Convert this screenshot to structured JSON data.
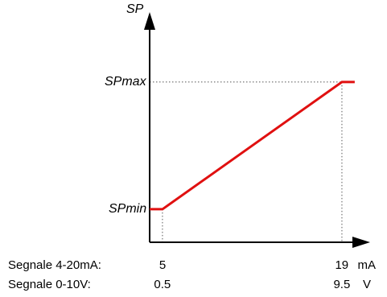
{
  "chart_data": {
    "type": "line",
    "title": "",
    "ylabel": "SP",
    "y_ticks": [
      {
        "label": "SPmin",
        "value": 0
      },
      {
        "label": "SPmax",
        "value": 1
      }
    ],
    "x_axis_rows": [
      {
        "label": "Segnale 4-20mA:",
        "ticks": [
          "5",
          "19"
        ],
        "unit": "mA"
      },
      {
        "label": "Segnale 0-10V:",
        "ticks": [
          "0.5",
          "9.5"
        ],
        "unit": "V"
      }
    ],
    "series": [
      {
        "x": [
          4,
          5,
          19,
          20
        ],
        "y": [
          0,
          0,
          1,
          1
        ]
      }
    ],
    "x_unit": "mA",
    "xlim": [
      4,
      21.2
    ],
    "ylim": [
      -0.26,
      1.55
    ],
    "guide_lines": "dotted",
    "grid": false,
    "colors": {
      "line": "#e01010",
      "axis": "#000000",
      "guide": "#555555"
    }
  }
}
